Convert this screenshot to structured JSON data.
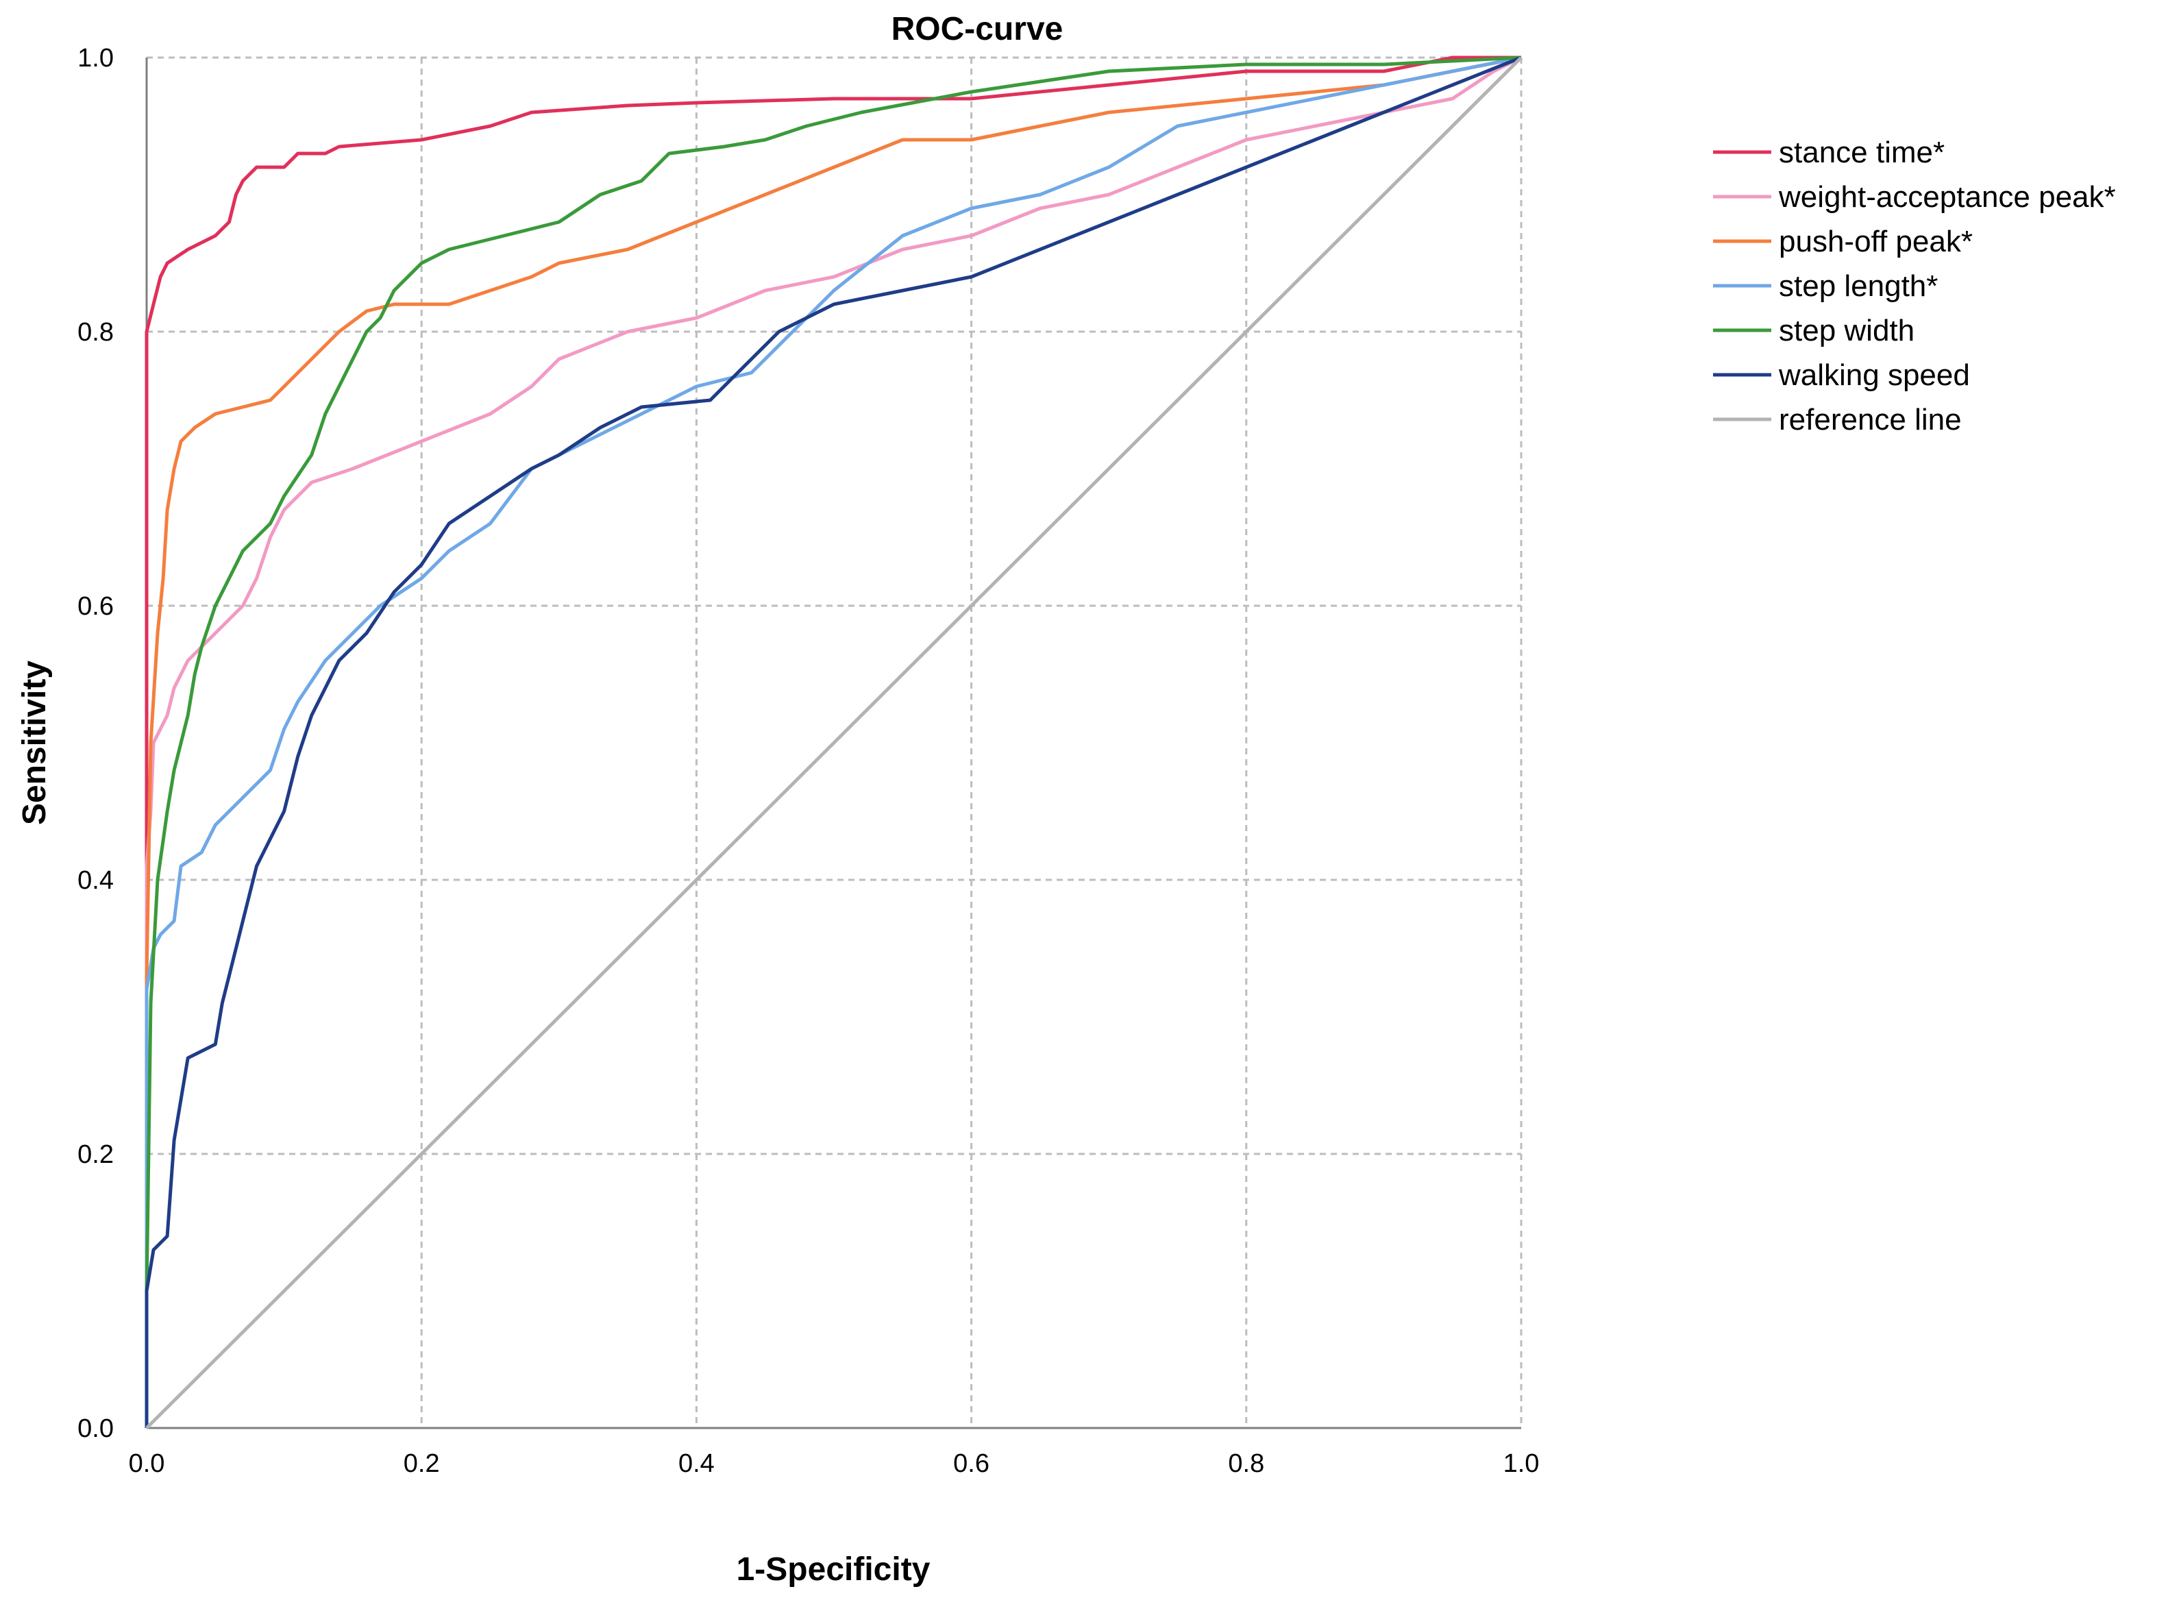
{
  "chart_data": {
    "type": "line",
    "title": "ROC-curve",
    "xlabel": "1-Specificity",
    "ylabel": "Sensitivity",
    "xlim": [
      0,
      1
    ],
    "ylim": [
      0,
      1
    ],
    "xticks": [
      "0.0",
      "0.2",
      "0.4",
      "0.6",
      "0.8",
      "1.0"
    ],
    "yticks": [
      "0.0",
      "0.2",
      "0.4",
      "0.6",
      "0.8",
      "1.0"
    ],
    "grid": true,
    "legend_position": "right",
    "series": [
      {
        "name": "stance time*",
        "color": "#e0305a",
        "points": [
          [
            0,
            0
          ],
          [
            0,
            0.8
          ],
          [
            0.005,
            0.82
          ],
          [
            0.01,
            0.84
          ],
          [
            0.015,
            0.85
          ],
          [
            0.03,
            0.86
          ],
          [
            0.05,
            0.87
          ],
          [
            0.06,
            0.88
          ],
          [
            0.065,
            0.9
          ],
          [
            0.07,
            0.91
          ],
          [
            0.08,
            0.92
          ],
          [
            0.1,
            0.92
          ],
          [
            0.11,
            0.93
          ],
          [
            0.13,
            0.93
          ],
          [
            0.14,
            0.935
          ],
          [
            0.2,
            0.94
          ],
          [
            0.25,
            0.95
          ],
          [
            0.28,
            0.96
          ],
          [
            0.35,
            0.965
          ],
          [
            0.4,
            0.967
          ],
          [
            0.5,
            0.97
          ],
          [
            0.6,
            0.97
          ],
          [
            0.7,
            0.98
          ],
          [
            0.8,
            0.99
          ],
          [
            0.9,
            0.99
          ],
          [
            0.95,
            1.0
          ],
          [
            1,
            1
          ]
        ]
      },
      {
        "name": "weight-acceptance peak*",
        "color": "#f29ac4",
        "points": [
          [
            0,
            0
          ],
          [
            0,
            0.41
          ],
          [
            0.003,
            0.45
          ],
          [
            0.005,
            0.5
          ],
          [
            0.015,
            0.52
          ],
          [
            0.02,
            0.54
          ],
          [
            0.03,
            0.56
          ],
          [
            0.05,
            0.58
          ],
          [
            0.07,
            0.6
          ],
          [
            0.08,
            0.62
          ],
          [
            0.09,
            0.65
          ],
          [
            0.1,
            0.67
          ],
          [
            0.12,
            0.69
          ],
          [
            0.15,
            0.7
          ],
          [
            0.2,
            0.72
          ],
          [
            0.25,
            0.74
          ],
          [
            0.28,
            0.76
          ],
          [
            0.3,
            0.78
          ],
          [
            0.35,
            0.8
          ],
          [
            0.4,
            0.81
          ],
          [
            0.45,
            0.83
          ],
          [
            0.5,
            0.84
          ],
          [
            0.55,
            0.86
          ],
          [
            0.6,
            0.87
          ],
          [
            0.65,
            0.89
          ],
          [
            0.7,
            0.9
          ],
          [
            0.75,
            0.92
          ],
          [
            0.8,
            0.94
          ],
          [
            0.85,
            0.95
          ],
          [
            0.9,
            0.96
          ],
          [
            0.95,
            0.97
          ],
          [
            0.98,
            0.99
          ],
          [
            1,
            1
          ]
        ]
      },
      {
        "name": "push-off peak*",
        "color": "#f57e3e",
        "points": [
          [
            0,
            0
          ],
          [
            0,
            0.33
          ],
          [
            0.003,
            0.5
          ],
          [
            0.008,
            0.58
          ],
          [
            0.012,
            0.62
          ],
          [
            0.015,
            0.67
          ],
          [
            0.02,
            0.7
          ],
          [
            0.025,
            0.72
          ],
          [
            0.035,
            0.73
          ],
          [
            0.05,
            0.74
          ],
          [
            0.07,
            0.745
          ],
          [
            0.09,
            0.75
          ],
          [
            0.1,
            0.76
          ],
          [
            0.12,
            0.78
          ],
          [
            0.14,
            0.8
          ],
          [
            0.16,
            0.815
          ],
          [
            0.18,
            0.82
          ],
          [
            0.22,
            0.82
          ],
          [
            0.25,
            0.83
          ],
          [
            0.28,
            0.84
          ],
          [
            0.3,
            0.85
          ],
          [
            0.35,
            0.86
          ],
          [
            0.4,
            0.88
          ],
          [
            0.45,
            0.9
          ],
          [
            0.5,
            0.92
          ],
          [
            0.55,
            0.94
          ],
          [
            0.6,
            0.94
          ],
          [
            0.65,
            0.95
          ],
          [
            0.7,
            0.96
          ],
          [
            0.8,
            0.97
          ],
          [
            0.9,
            0.98
          ],
          [
            0.95,
            0.99
          ],
          [
            1,
            1
          ]
        ]
      },
      {
        "name": "step length*",
        "color": "#6fa8e6",
        "points": [
          [
            0,
            0
          ],
          [
            0,
            0.32
          ],
          [
            0.005,
            0.35
          ],
          [
            0.01,
            0.36
          ],
          [
            0.02,
            0.37
          ],
          [
            0.025,
            0.41
          ],
          [
            0.04,
            0.42
          ],
          [
            0.05,
            0.44
          ],
          [
            0.07,
            0.46
          ],
          [
            0.09,
            0.48
          ],
          [
            0.1,
            0.51
          ],
          [
            0.11,
            0.53
          ],
          [
            0.13,
            0.56
          ],
          [
            0.15,
            0.58
          ],
          [
            0.17,
            0.6
          ],
          [
            0.2,
            0.62
          ],
          [
            0.22,
            0.64
          ],
          [
            0.25,
            0.66
          ],
          [
            0.28,
            0.7
          ],
          [
            0.32,
            0.72
          ],
          [
            0.36,
            0.74
          ],
          [
            0.4,
            0.76
          ],
          [
            0.44,
            0.77
          ],
          [
            0.47,
            0.8
          ],
          [
            0.5,
            0.83
          ],
          [
            0.55,
            0.87
          ],
          [
            0.6,
            0.89
          ],
          [
            0.65,
            0.9
          ],
          [
            0.7,
            0.92
          ],
          [
            0.75,
            0.95
          ],
          [
            0.8,
            0.96
          ],
          [
            0.85,
            0.97
          ],
          [
            0.9,
            0.98
          ],
          [
            0.95,
            0.99
          ],
          [
            1,
            1
          ]
        ]
      },
      {
        "name": "step width",
        "color": "#3a9a3a",
        "points": [
          [
            0,
            0
          ],
          [
            0,
            0.1
          ],
          [
            0.003,
            0.31
          ],
          [
            0.008,
            0.4
          ],
          [
            0.015,
            0.45
          ],
          [
            0.02,
            0.48
          ],
          [
            0.03,
            0.52
          ],
          [
            0.035,
            0.55
          ],
          [
            0.04,
            0.57
          ],
          [
            0.05,
            0.6
          ],
          [
            0.06,
            0.62
          ],
          [
            0.07,
            0.64
          ],
          [
            0.08,
            0.65
          ],
          [
            0.09,
            0.66
          ],
          [
            0.1,
            0.68
          ],
          [
            0.12,
            0.71
          ],
          [
            0.13,
            0.74
          ],
          [
            0.14,
            0.76
          ],
          [
            0.15,
            0.78
          ],
          [
            0.16,
            0.8
          ],
          [
            0.17,
            0.81
          ],
          [
            0.18,
            0.83
          ],
          [
            0.2,
            0.85
          ],
          [
            0.22,
            0.86
          ],
          [
            0.26,
            0.87
          ],
          [
            0.3,
            0.88
          ],
          [
            0.33,
            0.9
          ],
          [
            0.36,
            0.91
          ],
          [
            0.38,
            0.93
          ],
          [
            0.42,
            0.935
          ],
          [
            0.45,
            0.94
          ],
          [
            0.48,
            0.95
          ],
          [
            0.52,
            0.96
          ],
          [
            0.6,
            0.975
          ],
          [
            0.7,
            0.99
          ],
          [
            0.8,
            0.995
          ],
          [
            0.9,
            0.995
          ],
          [
            1,
            1
          ]
        ]
      },
      {
        "name": "walking speed",
        "color": "#1f3c88",
        "points": [
          [
            0,
            0
          ],
          [
            0,
            0.1
          ],
          [
            0.005,
            0.13
          ],
          [
            0.015,
            0.14
          ],
          [
            0.02,
            0.21
          ],
          [
            0.03,
            0.27
          ],
          [
            0.05,
            0.28
          ],
          [
            0.055,
            0.31
          ],
          [
            0.06,
            0.33
          ],
          [
            0.07,
            0.37
          ],
          [
            0.08,
            0.41
          ],
          [
            0.09,
            0.43
          ],
          [
            0.1,
            0.45
          ],
          [
            0.11,
            0.49
          ],
          [
            0.12,
            0.52
          ],
          [
            0.13,
            0.54
          ],
          [
            0.14,
            0.56
          ],
          [
            0.16,
            0.58
          ],
          [
            0.18,
            0.61
          ],
          [
            0.2,
            0.63
          ],
          [
            0.22,
            0.66
          ],
          [
            0.25,
            0.68
          ],
          [
            0.28,
            0.7
          ],
          [
            0.3,
            0.71
          ],
          [
            0.33,
            0.73
          ],
          [
            0.36,
            0.745
          ],
          [
            0.41,
            0.75
          ],
          [
            0.42,
            0.76
          ],
          [
            0.44,
            0.78
          ],
          [
            0.46,
            0.8
          ],
          [
            0.48,
            0.81
          ],
          [
            0.5,
            0.82
          ],
          [
            0.55,
            0.83
          ],
          [
            0.6,
            0.84
          ],
          [
            0.65,
            0.86
          ],
          [
            0.7,
            0.88
          ],
          [
            0.75,
            0.9
          ],
          [
            0.8,
            0.92
          ],
          [
            0.85,
            0.94
          ],
          [
            0.9,
            0.96
          ],
          [
            0.95,
            0.98
          ],
          [
            1,
            1
          ]
        ]
      },
      {
        "name": "reference line",
        "color": "#b3b3b3",
        "points": [
          [
            0,
            0
          ],
          [
            1,
            1
          ]
        ]
      }
    ]
  }
}
